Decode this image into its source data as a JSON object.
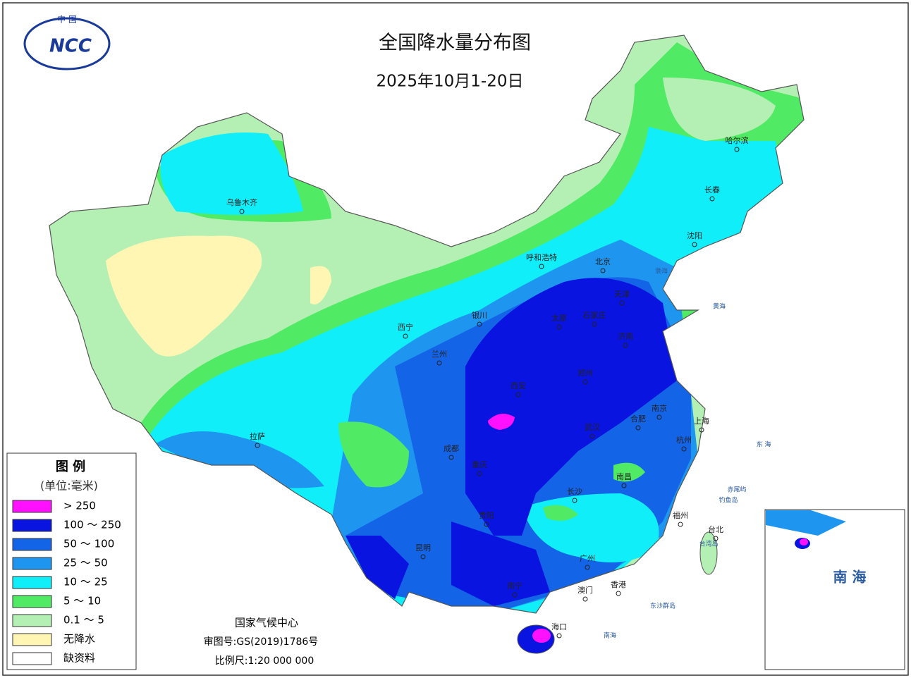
{
  "header": {
    "title": "全国降水量分布图",
    "subtitle": "2025年10月1-20日",
    "logo_top": "中 国",
    "logo_text": "NCC"
  },
  "legend": {
    "title": "图 例",
    "unit": "(单位:毫米)",
    "items": [
      {
        "label": "> 250",
        "color": "#ff10ff"
      },
      {
        "label": "100 ～ 250",
        "color": "#0a14e0"
      },
      {
        "label": "50 ～ 100",
        "color": "#1464e8"
      },
      {
        "label": "25 ～ 50",
        "color": "#1e96f0"
      },
      {
        "label": "10 ～ 25",
        "color": "#10eefa"
      },
      {
        "label": "5 ～ 10",
        "color": "#50ea64"
      },
      {
        "label": "0.1 ～ 5",
        "color": "#b4f0b4"
      },
      {
        "label": "无降水",
        "color": "#fff6b4"
      },
      {
        "label": "缺资料",
        "color": "#ffffff"
      }
    ]
  },
  "cities": [
    "乌鲁木齐",
    "呼和浩特",
    "北京",
    "天津",
    "银川",
    "太原",
    "石家庄",
    "济南",
    "西宁",
    "兰州",
    "西安",
    "郑州",
    "南京",
    "合肥",
    "上海",
    "武汉",
    "杭州",
    "拉萨",
    "成都",
    "重庆",
    "南昌",
    "长沙",
    "福州",
    "贵阳",
    "台北",
    "昆明",
    "广州",
    "南宁",
    "香港",
    "澳门",
    "海口",
    "哈尔滨",
    "长春",
    "沈阳"
  ],
  "annotations": [
    "渤海",
    "黄海",
    "东 海",
    "台湾岛",
    "钓鱼岛",
    "赤尾屿",
    "东沙群岛",
    "南海"
  ],
  "inset": {
    "label": "南 海"
  },
  "footer": {
    "org": "国家气候中心",
    "approval": "审图号:GS(2019)1786号",
    "scale": "比例尺:1:20 000 000"
  }
}
